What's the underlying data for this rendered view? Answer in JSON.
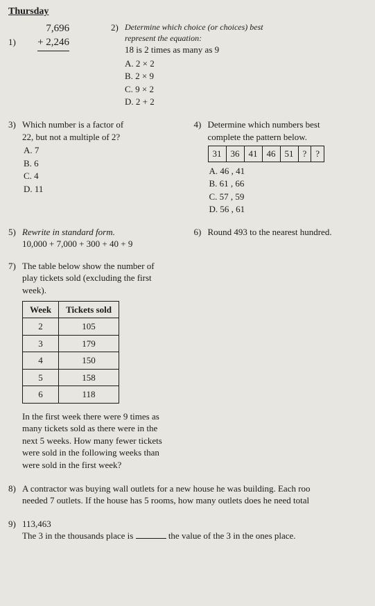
{
  "day_header": "Thursday",
  "q1": {
    "num": "1)",
    "top": "7,696",
    "bottom": "+ 2,246"
  },
  "q2": {
    "num": "2)",
    "prompt_line1": "Determine which choice (or choices) best",
    "prompt_line2": "represent the equation:",
    "statement": "18 is 2 times as many as 9",
    "a": "A. 2 × 2",
    "b": "B. 2 × 9",
    "c": "C. 9 × 2",
    "d": "D. 2 + 2"
  },
  "q3": {
    "num": "3)",
    "prompt_l1": "Which number is a factor of",
    "prompt_l2": "22, but not a multiple of 2?",
    "a": "A.  7",
    "b": "B.  6",
    "c": "C.  4",
    "d": "D.  11"
  },
  "q4": {
    "num": "4)",
    "prompt_l1": "Determine which numbers best",
    "prompt_l2": "complete the pattern below.",
    "cells": [
      "31",
      "36",
      "41",
      "46",
      "51",
      "?",
      "?"
    ],
    "a": "A.  46 , 41",
    "b": "B.  61 , 66",
    "c": "C.  57 , 59",
    "d": "D.  56 , 61"
  },
  "q5": {
    "num": "5)",
    "prompt": "Rewrite in standard form.",
    "expr": "10,000 + 7,000 + 300 + 40 + 9"
  },
  "q6": {
    "num": "6)",
    "prompt": "Round 493 to the nearest hundred."
  },
  "q7": {
    "num": "7)",
    "prompt_l1": "The table below show the number of",
    "prompt_l2": "play tickets sold (excluding the first",
    "prompt_l3": "week).",
    "col1": "Week",
    "col2": "Tickets sold",
    "rows": [
      [
        "2",
        "105"
      ],
      [
        "3",
        "179"
      ],
      [
        "4",
        "150"
      ],
      [
        "5",
        "158"
      ],
      [
        "6",
        "118"
      ]
    ],
    "body_l1": "In the first week there were 9 times as",
    "body_l2": "many tickets sold as there were in the",
    "body_l3": "next 5 weeks. How many fewer tickets",
    "body_l4": "were sold in the following weeks than",
    "body_l5": "were sold in the first week?"
  },
  "q8": {
    "num": "8)",
    "l1": "A contractor was buying wall outlets for a new house he was building. Each roo",
    "l2": "needed 7 outlets. If the house has 5 rooms, how many outlets does he need total"
  },
  "q9": {
    "num": "9)",
    "value": "113,463",
    "l1a": "The 3 in the thousands place is ",
    "l1b": " the value of the 3 in the ones place."
  }
}
